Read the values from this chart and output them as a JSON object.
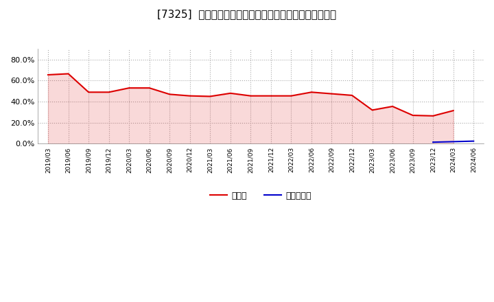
{
  "title": "[7325]  現頲金、有利子負債の総資産に対する比率の推移",
  "cash_dates": [
    "2019/03",
    "2019/06",
    "2019/09",
    "2019/12",
    "2020/03",
    "2020/06",
    "2020/09",
    "2020/12",
    "2021/03",
    "2021/06",
    "2021/09",
    "2021/12",
    "2022/03",
    "2022/06",
    "2022/09",
    "2022/12",
    "2023/03",
    "2023/06",
    "2023/09",
    "2023/12",
    "2024/03"
  ],
  "cash_values": [
    0.655,
    0.665,
    0.49,
    0.49,
    0.53,
    0.53,
    0.47,
    0.455,
    0.45,
    0.48,
    0.455,
    0.455,
    0.455,
    0.49,
    0.475,
    0.46,
    0.32,
    0.355,
    0.27,
    0.265,
    0.315
  ],
  "debt_dates": [
    "2023/12",
    "2024/03",
    "2024/06"
  ],
  "debt_values": [
    0.015,
    0.02,
    0.025
  ],
  "all_dates": [
    "2019/03",
    "2019/06",
    "2019/09",
    "2019/12",
    "2020/03",
    "2020/06",
    "2020/09",
    "2020/12",
    "2021/03",
    "2021/06",
    "2021/09",
    "2021/12",
    "2022/03",
    "2022/06",
    "2022/09",
    "2022/12",
    "2023/03",
    "2023/06",
    "2023/09",
    "2023/12",
    "2024/03",
    "2024/06"
  ],
  "cash_color": "#dd0000",
  "debt_color": "#0000cc",
  "background_color": "#ffffff",
  "grid_color": "#aaaaaa",
  "ylim": [
    0.0,
    0.9
  ],
  "yticks": [
    0.0,
    0.2,
    0.4,
    0.6,
    0.8
  ],
  "title_fontsize": 11,
  "legend_labels": [
    "現頲金",
    "有利子負債"
  ]
}
